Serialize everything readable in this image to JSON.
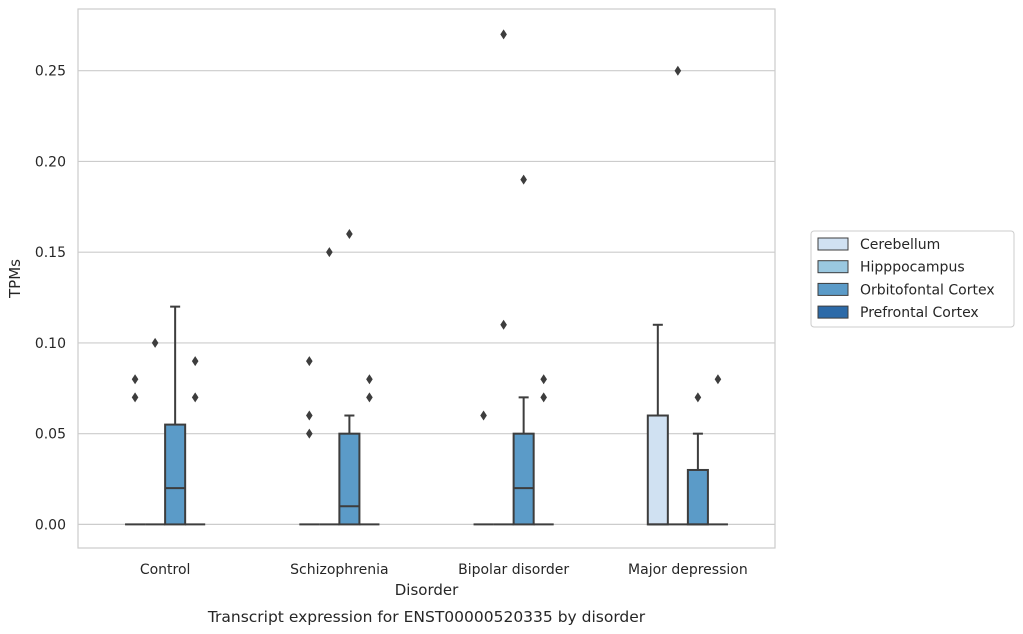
{
  "caption": "Transcript expression for ENST00000520335 by disorder",
  "chart_data": {
    "type": "box",
    "title": "",
    "xlabel": "Disorder",
    "ylabel": "TPMs",
    "ylim": [
      -0.013,
      0.284
    ],
    "yticks": [
      0.0,
      0.05,
      0.1,
      0.15,
      0.2,
      0.25
    ],
    "ytick_labels": [
      "0.00",
      "0.05",
      "0.10",
      "0.15",
      "0.20",
      "0.25"
    ],
    "grid": true,
    "legend_position": "right",
    "categories": [
      "Control",
      "Schizophrenia",
      "Bipolar disorder",
      "Major depression"
    ],
    "series": [
      {
        "name": "Cerebellum",
        "color": "#d0e1f2",
        "boxes": [
          {
            "q1": 0.0,
            "median": 0.0,
            "q3": 0.0,
            "whislo": 0.0,
            "whishi": 0.0,
            "fliers": [
              0.07,
              0.08
            ]
          },
          {
            "q1": 0.0,
            "median": 0.0,
            "q3": 0.0,
            "whislo": 0.0,
            "whishi": 0.0,
            "fliers": [
              0.05,
              0.06,
              0.09
            ]
          },
          {
            "q1": 0.0,
            "median": 0.0,
            "q3": 0.0,
            "whislo": 0.0,
            "whishi": 0.0,
            "fliers": [
              0.06
            ]
          },
          {
            "q1": 0.0,
            "median": 0.0,
            "q3": 0.06,
            "whislo": 0.0,
            "whishi": 0.11,
            "fliers": []
          }
        ]
      },
      {
        "name": "Hipppocampus",
        "color": "#9ac8e0",
        "boxes": [
          {
            "q1": 0.0,
            "median": 0.0,
            "q3": 0.0,
            "whislo": 0.0,
            "whishi": 0.0,
            "fliers": [
              0.1
            ]
          },
          {
            "q1": 0.0,
            "median": 0.0,
            "q3": 0.0,
            "whislo": 0.0,
            "whishi": 0.0,
            "fliers": [
              0.15
            ]
          },
          {
            "q1": 0.0,
            "median": 0.0,
            "q3": 0.0,
            "whislo": 0.0,
            "whishi": 0.0,
            "fliers": [
              0.11,
              0.27
            ]
          },
          {
            "q1": 0.0,
            "median": 0.0,
            "q3": 0.0,
            "whislo": 0.0,
            "whishi": 0.0,
            "fliers": [
              0.25
            ]
          }
        ]
      },
      {
        "name": "Orbitofontal Cortex",
        "color": "#5b9bc8",
        "boxes": [
          {
            "q1": 0.0,
            "median": 0.02,
            "q3": 0.055,
            "whislo": 0.0,
            "whishi": 0.12,
            "fliers": []
          },
          {
            "q1": 0.0,
            "median": 0.01,
            "q3": 0.05,
            "whislo": 0.0,
            "whishi": 0.06,
            "fliers": [
              0.16
            ]
          },
          {
            "q1": 0.0,
            "median": 0.02,
            "q3": 0.05,
            "whislo": 0.0,
            "whishi": 0.07,
            "fliers": [
              0.19
            ]
          },
          {
            "q1": 0.0,
            "median": 0.0,
            "q3": 0.03,
            "whislo": 0.0,
            "whishi": 0.05,
            "fliers": [
              0.07
            ]
          }
        ]
      },
      {
        "name": "Prefrontal Cortex",
        "color": "#2c6aa8",
        "boxes": [
          {
            "q1": 0.0,
            "median": 0.0,
            "q3": 0.0,
            "whislo": 0.0,
            "whishi": 0.0,
            "fliers": [
              0.07,
              0.09
            ]
          },
          {
            "q1": 0.0,
            "median": 0.0,
            "q3": 0.0,
            "whislo": 0.0,
            "whishi": 0.0,
            "fliers": [
              0.07,
              0.08
            ]
          },
          {
            "q1": 0.0,
            "median": 0.0,
            "q3": 0.0,
            "whislo": 0.0,
            "whishi": 0.0,
            "fliers": [
              0.07,
              0.08
            ]
          },
          {
            "q1": 0.0,
            "median": 0.0,
            "q3": 0.0,
            "whislo": 0.0,
            "whishi": 0.0,
            "fliers": [
              0.08
            ]
          }
        ]
      }
    ]
  }
}
